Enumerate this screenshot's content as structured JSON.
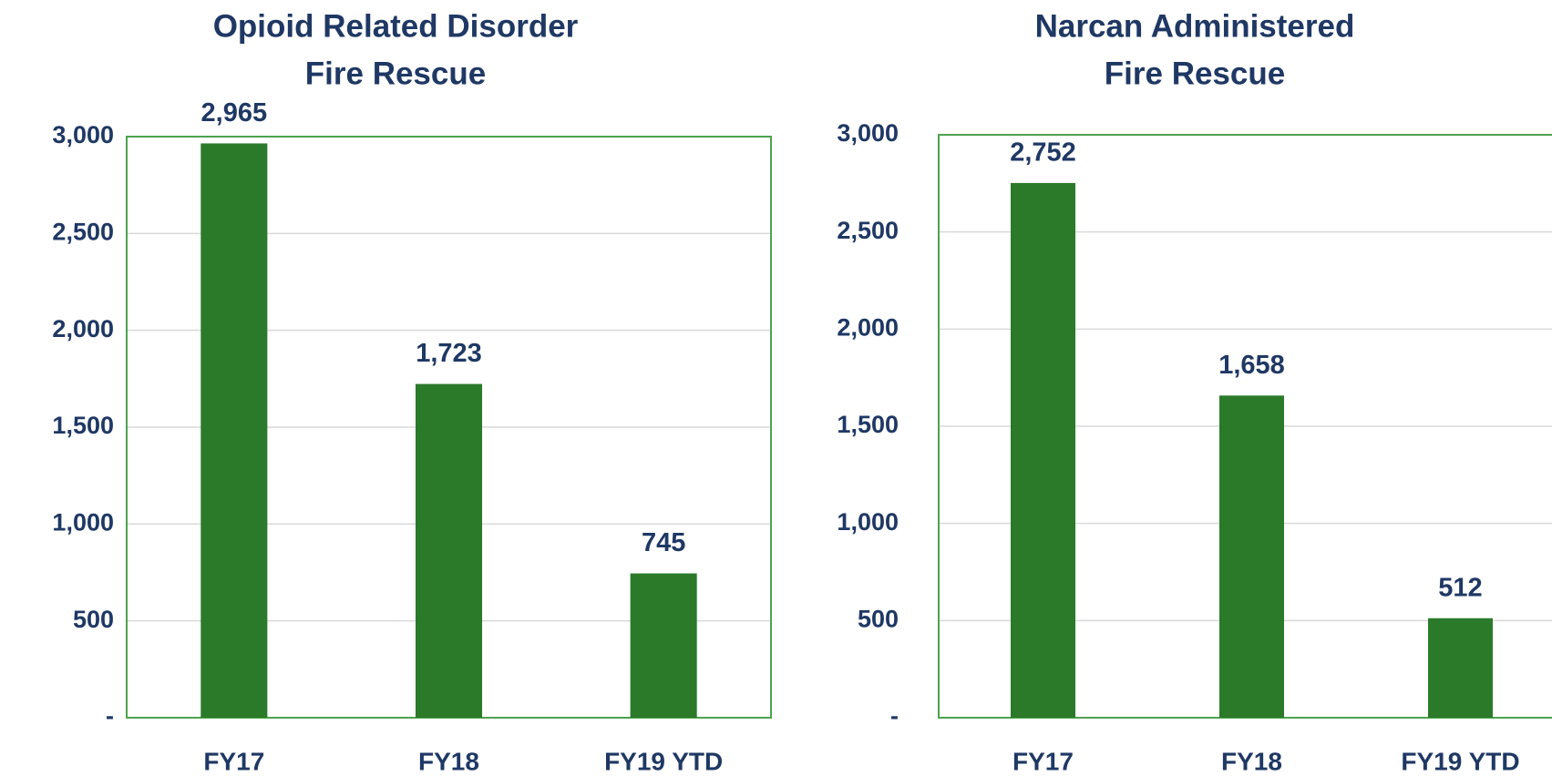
{
  "chart_data": [
    {
      "type": "bar",
      "title": "Opioid Related Disorder",
      "subtitle": "Fire Rescue",
      "categories": [
        "FY17",
        "FY18",
        "FY19 YTD"
      ],
      "values": [
        2965,
        1723,
        745
      ],
      "value_labels": [
        "2,965",
        "1,723",
        "745"
      ],
      "color": "#2a7a2a",
      "ylim": [
        0,
        3000
      ],
      "yticks": [
        {
          "value": 0,
          "label": "-"
        },
        500,
        {
          "value": 1000,
          "label": "1,000"
        },
        {
          "value": 1500,
          "label": "1,500"
        },
        {
          "value": 2000,
          "label": "2,000"
        },
        {
          "value": 2500,
          "label": "2,500"
        },
        {
          "value": 3000,
          "label": "3,000"
        }
      ],
      "grid": true
    },
    {
      "type": "bar",
      "title": "Narcan Administered",
      "subtitle": "Fire Rescue",
      "categories": [
        "FY17",
        "FY18",
        "FY19 YTD"
      ],
      "values": [
        2752,
        1658,
        512
      ],
      "value_labels": [
        "2,752",
        "1,658",
        "512"
      ],
      "color": "#2a7a2a",
      "ylim": [
        0,
        3000
      ],
      "yticks": [
        {
          "value": 0,
          "label": "-"
        },
        500,
        {
          "value": 1000,
          "label": "1,000"
        },
        {
          "value": 1500,
          "label": "1,500"
        },
        {
          "value": 2000,
          "label": "2,000"
        },
        {
          "value": 2500,
          "label": "2,500"
        },
        {
          "value": 3000,
          "label": "3,000"
        }
      ],
      "grid": true
    }
  ]
}
